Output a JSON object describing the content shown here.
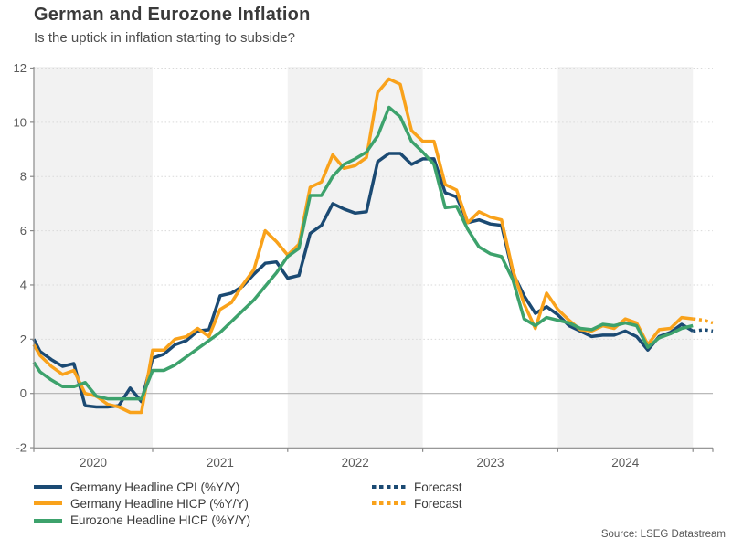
{
  "header": {
    "title": "German and Eurozone Inflation",
    "subtitle": "Is the uptick in inflation starting to subside?"
  },
  "source": "Source: LSEG Datastream",
  "colors": {
    "navy": "#1b4a73",
    "orange": "#f9a21b",
    "green": "#3da26c",
    "band": "#f2f2f2",
    "grid": "#d9d9d9",
    "zero_line": "#b0b0b0",
    "axis": "#8a8a8a",
    "tick_text": "#595959"
  },
  "chart_data": {
    "type": "line",
    "title": "German and Eurozone Inflation",
    "subtitle": "Is the uptick in inflation starting to subside?",
    "interval": "monthly",
    "ylim": [
      -2,
      12
    ],
    "y_ticks": [
      -2,
      0,
      2,
      4,
      6,
      8,
      10,
      12
    ],
    "x_tick_years": [
      "2020",
      "2021",
      "2022",
      "2023",
      "2024"
    ],
    "shaded_years": [
      "2020",
      "2022",
      "2024"
    ],
    "grid": "dotted horizontal",
    "legend_position": "bottom",
    "time_axis": {
      "first_point": "2020-02",
      "last_solid_point": "2025-01",
      "forecast_points": [
        "2025-02",
        "2025-03"
      ]
    },
    "series": [
      {
        "name": "Germany Headline CPI (%Y/Y)",
        "color": "#1b4a73",
        "style": "solid",
        "start_month": "2020-02",
        "values": [
          2.0,
          1.55,
          1.25,
          1.0,
          1.1,
          -0.45,
          -0.5,
          -0.5,
          -0.45,
          0.2,
          -0.3,
          1.3,
          1.45,
          1.8,
          1.95,
          2.3,
          2.35,
          3.6,
          3.7,
          3.95,
          4.4,
          4.8,
          4.85,
          4.25,
          4.35,
          5.9,
          6.2,
          7.0,
          6.8,
          6.65,
          6.7,
          8.55,
          8.85,
          8.85,
          8.45,
          8.65,
          8.65,
          7.4,
          7.25,
          6.3,
          6.4,
          6.25,
          6.2,
          4.45,
          3.6,
          2.95,
          3.2,
          2.9,
          2.5,
          2.3,
          2.1,
          2.15,
          2.15,
          2.3,
          2.1,
          1.6,
          2.1,
          2.25,
          2.55,
          2.3
        ]
      },
      {
        "name": "Germany Headline HICP (%Y/Y)",
        "color": "#f9a21b",
        "style": "solid",
        "start_month": "2020-02",
        "values": [
          1.8,
          1.4,
          1.0,
          0.7,
          0.85,
          0.0,
          -0.1,
          -0.4,
          -0.5,
          -0.7,
          -0.7,
          1.6,
          1.6,
          2.0,
          2.1,
          2.4,
          2.1,
          3.1,
          3.35,
          4.0,
          4.57,
          6.0,
          5.6,
          5.1,
          5.5,
          7.6,
          7.8,
          8.8,
          8.3,
          8.4,
          8.7,
          11.1,
          11.6,
          11.4,
          9.7,
          9.3,
          9.3,
          7.7,
          7.5,
          6.3,
          6.7,
          6.5,
          6.4,
          4.55,
          3.3,
          2.4,
          3.7,
          3.1,
          2.7,
          2.35,
          2.3,
          2.5,
          2.4,
          2.75,
          2.6,
          1.8,
          2.35,
          2.4,
          2.8,
          2.75
        ]
      },
      {
        "name": "Eurozone Headline HICP (%Y/Y)",
        "color": "#3da26c",
        "style": "solid",
        "start_month": "2020-02",
        "values": [
          1.15,
          0.8,
          0.5,
          0.25,
          0.25,
          0.4,
          -0.1,
          -0.2,
          -0.2,
          -0.2,
          -0.2,
          0.85,
          0.85,
          1.05,
          1.35,
          1.65,
          1.95,
          2.25,
          2.65,
          3.05,
          3.45,
          3.95,
          4.45,
          5.05,
          5.35,
          7.3,
          7.3,
          8.0,
          8.45,
          8.65,
          8.9,
          9.5,
          10.55,
          10.2,
          9.3,
          8.9,
          8.45,
          6.85,
          6.9,
          6.05,
          5.4,
          5.15,
          5.05,
          4.2,
          2.75,
          2.5,
          2.8,
          2.7,
          2.6,
          2.4,
          2.35,
          2.55,
          2.5,
          2.6,
          2.5,
          1.7,
          2.05,
          2.2,
          2.4,
          2.5
        ]
      },
      {
        "name": "Forecast",
        "color": "#1b4a73",
        "style": "dotted",
        "start_month": "2025-01",
        "values": [
          2.3,
          2.35,
          2.3
        ]
      },
      {
        "name": "Forecast",
        "color": "#f9a21b",
        "style": "dotted",
        "start_month": "2025-01",
        "values": [
          2.75,
          2.7,
          2.6
        ]
      }
    ],
    "source": "Source: LSEG Datastream"
  }
}
